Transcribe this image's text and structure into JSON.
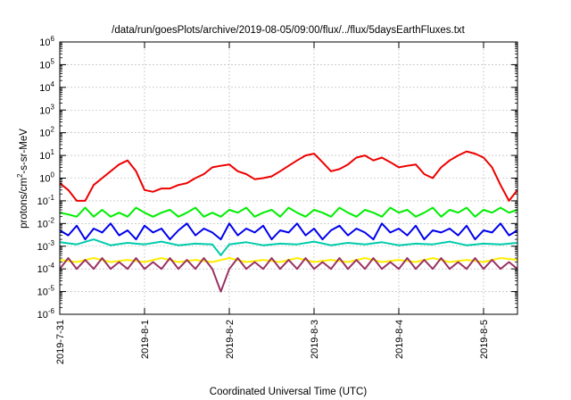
{
  "chart_data": {
    "type": "line",
    "title": "/data/run/goesPlots/archive/2019-08-05/09:00/flux/../flux/5daysEarthFluxes.txt",
    "xlabel": "Coordinated Universal Time (UTC)",
    "ylabel": {
      "base": "protons/cm",
      "sup": "2",
      "rest": "-s-sr-MeV"
    },
    "yscale": "log",
    "ylim_exponents": [
      -6,
      6
    ],
    "xlim_days": [
      0,
      5.4
    ],
    "x_tick_labels": [
      "2019-7-31",
      "2019-8-1",
      "2019-8-2",
      "2019-8-3",
      "2019-8-4",
      "2019-8-5"
    ],
    "x_tick_days": [
      0,
      1,
      2,
      3,
      4,
      5
    ],
    "y_tick_exponents": [
      -6,
      -5,
      -4,
      -3,
      -2,
      -1,
      0,
      1,
      2,
      3,
      4,
      5,
      6
    ],
    "grid": true,
    "series": [
      {
        "color": "#ee0000",
        "points": [
          [
            0.0,
            0.6
          ],
          [
            0.1,
            0.3
          ],
          [
            0.2,
            0.1
          ],
          [
            0.3,
            0.1
          ],
          [
            0.4,
            0.5
          ],
          [
            0.5,
            1.0
          ],
          [
            0.6,
            2.0
          ],
          [
            0.7,
            4.0
          ],
          [
            0.8,
            6.0
          ],
          [
            0.9,
            2.0
          ],
          [
            1.0,
            0.3
          ],
          [
            1.1,
            0.25
          ],
          [
            1.2,
            0.35
          ],
          [
            1.3,
            0.35
          ],
          [
            1.4,
            0.5
          ],
          [
            1.5,
            0.6
          ],
          [
            1.6,
            1.0
          ],
          [
            1.7,
            1.5
          ],
          [
            1.8,
            3.0
          ],
          [
            1.9,
            3.5
          ],
          [
            2.0,
            4.0
          ],
          [
            2.1,
            2.0
          ],
          [
            2.2,
            1.5
          ],
          [
            2.3,
            0.9
          ],
          [
            2.4,
            1.0
          ],
          [
            2.5,
            1.2
          ],
          [
            2.6,
            2.0
          ],
          [
            2.7,
            3.5
          ],
          [
            2.8,
            6.0
          ],
          [
            2.9,
            10
          ],
          [
            3.0,
            12
          ],
          [
            3.1,
            5.0
          ],
          [
            3.2,
            2.0
          ],
          [
            3.3,
            2.5
          ],
          [
            3.4,
            4.0
          ],
          [
            3.5,
            8.0
          ],
          [
            3.6,
            10
          ],
          [
            3.7,
            6.0
          ],
          [
            3.8,
            8.0
          ],
          [
            3.9,
            5.0
          ],
          [
            4.0,
            3.0
          ],
          [
            4.1,
            3.5
          ],
          [
            4.2,
            4.0
          ],
          [
            4.3,
            1.5
          ],
          [
            4.4,
            1.0
          ],
          [
            4.5,
            3.0
          ],
          [
            4.6,
            6.0
          ],
          [
            4.7,
            10
          ],
          [
            4.8,
            15
          ],
          [
            4.9,
            12
          ],
          [
            5.0,
            8.0
          ],
          [
            5.1,
            3.0
          ],
          [
            5.2,
            0.5
          ],
          [
            5.3,
            0.1
          ],
          [
            5.4,
            0.3
          ]
        ]
      },
      {
        "color": "#00ee00",
        "points": [
          [
            0.0,
            0.03
          ],
          [
            0.1,
            0.025
          ],
          [
            0.2,
            0.02
          ],
          [
            0.3,
            0.05
          ],
          [
            0.4,
            0.02
          ],
          [
            0.5,
            0.04
          ],
          [
            0.6,
            0.02
          ],
          [
            0.7,
            0.03
          ],
          [
            0.8,
            0.02
          ],
          [
            0.9,
            0.05
          ],
          [
            1.0,
            0.03
          ],
          [
            1.1,
            0.02
          ],
          [
            1.2,
            0.03
          ],
          [
            1.3,
            0.04
          ],
          [
            1.4,
            0.02
          ],
          [
            1.5,
            0.03
          ],
          [
            1.6,
            0.05
          ],
          [
            1.7,
            0.02
          ],
          [
            1.8,
            0.03
          ],
          [
            1.9,
            0.02
          ],
          [
            2.0,
            0.04
          ],
          [
            2.1,
            0.03
          ],
          [
            2.2,
            0.05
          ],
          [
            2.3,
            0.02
          ],
          [
            2.4,
            0.03
          ],
          [
            2.5,
            0.04
          ],
          [
            2.6,
            0.02
          ],
          [
            2.7,
            0.05
          ],
          [
            2.8,
            0.03
          ],
          [
            2.9,
            0.02
          ],
          [
            3.0,
            0.04
          ],
          [
            3.1,
            0.03
          ],
          [
            3.2,
            0.02
          ],
          [
            3.3,
            0.05
          ],
          [
            3.4,
            0.03
          ],
          [
            3.5,
            0.02
          ],
          [
            3.6,
            0.04
          ],
          [
            3.7,
            0.03
          ],
          [
            3.8,
            0.02
          ],
          [
            3.9,
            0.05
          ],
          [
            4.0,
            0.03
          ],
          [
            4.1,
            0.04
          ],
          [
            4.2,
            0.02
          ],
          [
            4.3,
            0.03
          ],
          [
            4.4,
            0.05
          ],
          [
            4.5,
            0.02
          ],
          [
            4.6,
            0.04
          ],
          [
            4.7,
            0.03
          ],
          [
            4.8,
            0.05
          ],
          [
            4.9,
            0.02
          ],
          [
            5.0,
            0.04
          ],
          [
            5.1,
            0.03
          ],
          [
            5.2,
            0.05
          ],
          [
            5.3,
            0.03
          ],
          [
            5.4,
            0.04
          ]
        ]
      },
      {
        "color": "#00ccaa",
        "points": [
          [
            0.0,
            0.0015
          ],
          [
            0.2,
            0.0012
          ],
          [
            0.4,
            0.002
          ],
          [
            0.6,
            0.0011
          ],
          [
            0.8,
            0.0014
          ],
          [
            1.0,
            0.0012
          ],
          [
            1.2,
            0.0016
          ],
          [
            1.4,
            0.0011
          ],
          [
            1.6,
            0.0013
          ],
          [
            1.8,
            0.0012
          ],
          [
            1.9,
            0.0004
          ],
          [
            2.0,
            0.0012
          ],
          [
            2.2,
            0.0015
          ],
          [
            2.4,
            0.0011
          ],
          [
            2.6,
            0.0013
          ],
          [
            2.8,
            0.0012
          ],
          [
            3.0,
            0.0016
          ],
          [
            3.2,
            0.0011
          ],
          [
            3.4,
            0.0014
          ],
          [
            3.6,
            0.0012
          ],
          [
            3.8,
            0.0015
          ],
          [
            4.0,
            0.0011
          ],
          [
            4.2,
            0.0013
          ],
          [
            4.4,
            0.0012
          ],
          [
            4.6,
            0.0016
          ],
          [
            4.8,
            0.0011
          ],
          [
            5.0,
            0.0013
          ],
          [
            5.2,
            0.0012
          ],
          [
            5.4,
            0.0014
          ]
        ]
      },
      {
        "color": "#0000ee",
        "points": [
          [
            0.0,
            0.005
          ],
          [
            0.1,
            0.003
          ],
          [
            0.2,
            0.008
          ],
          [
            0.3,
            0.002
          ],
          [
            0.4,
            0.006
          ],
          [
            0.5,
            0.004
          ],
          [
            0.6,
            0.01
          ],
          [
            0.7,
            0.003
          ],
          [
            0.8,
            0.005
          ],
          [
            0.9,
            0.002
          ],
          [
            1.0,
            0.008
          ],
          [
            1.1,
            0.004
          ],
          [
            1.2,
            0.006
          ],
          [
            1.3,
            0.002
          ],
          [
            1.4,
            0.005
          ],
          [
            1.5,
            0.01
          ],
          [
            1.6,
            0.003
          ],
          [
            1.7,
            0.006
          ],
          [
            1.8,
            0.004
          ],
          [
            1.9,
            0.002
          ],
          [
            2.0,
            0.01
          ],
          [
            2.1,
            0.003
          ],
          [
            2.2,
            0.006
          ],
          [
            2.3,
            0.004
          ],
          [
            2.4,
            0.008
          ],
          [
            2.5,
            0.002
          ],
          [
            2.6,
            0.005
          ],
          [
            2.7,
            0.004
          ],
          [
            2.8,
            0.01
          ],
          [
            2.9,
            0.003
          ],
          [
            3.0,
            0.006
          ],
          [
            3.1,
            0.002
          ],
          [
            3.2,
            0.005
          ],
          [
            3.3,
            0.008
          ],
          [
            3.4,
            0.003
          ],
          [
            3.5,
            0.006
          ],
          [
            3.6,
            0.004
          ],
          [
            3.7,
            0.002
          ],
          [
            3.8,
            0.01
          ],
          [
            3.9,
            0.004
          ],
          [
            4.0,
            0.006
          ],
          [
            4.1,
            0.003
          ],
          [
            4.2,
            0.008
          ],
          [
            4.3,
            0.002
          ],
          [
            4.4,
            0.005
          ],
          [
            4.5,
            0.004
          ],
          [
            4.6,
            0.006
          ],
          [
            4.7,
            0.003
          ],
          [
            4.8,
            0.008
          ],
          [
            4.9,
            0.002
          ],
          [
            5.0,
            0.005
          ],
          [
            5.1,
            0.004
          ],
          [
            5.2,
            0.01
          ],
          [
            5.3,
            0.003
          ],
          [
            5.4,
            0.005
          ]
        ]
      },
      {
        "color": "#ffee00",
        "points": [
          [
            0.0,
            0.00025
          ],
          [
            0.2,
            0.0002
          ],
          [
            0.4,
            0.0003
          ],
          [
            0.6,
            0.0002
          ],
          [
            0.8,
            0.00025
          ],
          [
            1.0,
            0.0002
          ],
          [
            1.2,
            0.0003
          ],
          [
            1.4,
            0.0002
          ],
          [
            1.6,
            0.00025
          ],
          [
            1.8,
            0.0002
          ],
          [
            2.0,
            0.0003
          ],
          [
            2.2,
            0.0002
          ],
          [
            2.4,
            0.00025
          ],
          [
            2.6,
            0.0002
          ],
          [
            2.8,
            0.0003
          ],
          [
            3.0,
            0.0002
          ],
          [
            3.2,
            0.00025
          ],
          [
            3.4,
            0.0002
          ],
          [
            3.6,
            0.0003
          ],
          [
            3.8,
            0.0002
          ],
          [
            4.0,
            0.00025
          ],
          [
            4.2,
            0.0002
          ],
          [
            4.4,
            0.0003
          ],
          [
            4.6,
            0.0002
          ],
          [
            4.8,
            0.00025
          ],
          [
            5.0,
            0.0002
          ],
          [
            5.2,
            0.0003
          ],
          [
            5.4,
            0.00025
          ]
        ]
      },
      {
        "color": "#993366",
        "points": [
          [
            0.0,
            0.0001
          ],
          [
            0.1,
            0.0003
          ],
          [
            0.2,
            0.0001
          ],
          [
            0.3,
            0.00025
          ],
          [
            0.4,
            0.0001
          ],
          [
            0.5,
            0.0003
          ],
          [
            0.6,
            0.0001
          ],
          [
            0.7,
            0.0002
          ],
          [
            0.8,
            0.0001
          ],
          [
            0.9,
            0.0003
          ],
          [
            1.0,
            0.0001
          ],
          [
            1.1,
            0.0002
          ],
          [
            1.2,
            0.0001
          ],
          [
            1.3,
            0.0003
          ],
          [
            1.4,
            0.0001
          ],
          [
            1.5,
            0.00025
          ],
          [
            1.6,
            0.0001
          ],
          [
            1.7,
            0.0003
          ],
          [
            1.8,
            0.0001
          ],
          [
            1.9,
            1e-05
          ],
          [
            2.0,
            0.0001
          ],
          [
            2.1,
            0.0003
          ],
          [
            2.2,
            0.0001
          ],
          [
            2.3,
            0.0002
          ],
          [
            2.4,
            0.0001
          ],
          [
            2.5,
            0.0003
          ],
          [
            2.6,
            0.0001
          ],
          [
            2.7,
            0.00025
          ],
          [
            2.8,
            0.0001
          ],
          [
            2.9,
            0.0003
          ],
          [
            3.0,
            0.0001
          ],
          [
            3.1,
            0.0002
          ],
          [
            3.2,
            0.0001
          ],
          [
            3.3,
            0.0003
          ],
          [
            3.4,
            0.0001
          ],
          [
            3.5,
            0.00025
          ],
          [
            3.6,
            0.0001
          ],
          [
            3.7,
            0.0003
          ],
          [
            3.8,
            0.0001
          ],
          [
            3.9,
            0.0002
          ],
          [
            4.0,
            0.0001
          ],
          [
            4.1,
            0.0003
          ],
          [
            4.2,
            0.0001
          ],
          [
            4.3,
            0.00025
          ],
          [
            4.4,
            0.0001
          ],
          [
            4.5,
            0.0003
          ],
          [
            4.6,
            0.0001
          ],
          [
            4.7,
            0.0002
          ],
          [
            4.8,
            0.0001
          ],
          [
            4.9,
            0.0003
          ],
          [
            5.0,
            0.0001
          ],
          [
            5.1,
            0.00025
          ],
          [
            5.2,
            0.0001
          ],
          [
            5.3,
            0.0002
          ],
          [
            5.4,
            0.0001
          ]
        ]
      }
    ]
  }
}
